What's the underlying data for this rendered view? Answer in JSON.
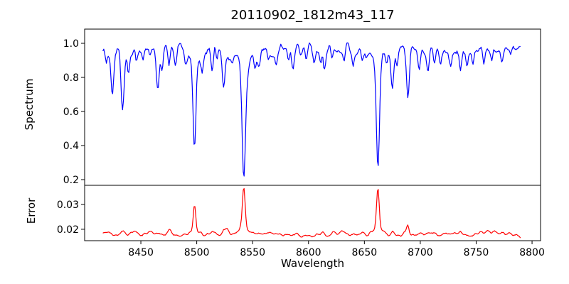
{
  "chart_data": {
    "type": "line",
    "title": "20110902_1812m43_117",
    "xlabel": "Wavelength",
    "xlim": [
      8399.7,
      8807.6
    ],
    "xticks": [
      8450,
      8500,
      8550,
      8600,
      8650,
      8700,
      8750,
      8800
    ],
    "xtick_labels": [
      "8450",
      "8500",
      "8550",
      "8600",
      "8650",
      "8700",
      "8750",
      "8800"
    ],
    "wavelength_range": [
      8416,
      8790
    ],
    "sample_step": 0.8,
    "grid": false,
    "legend": "none",
    "panels": [
      {
        "name": "spectrum",
        "ylabel": "Spectrum",
        "ylim": [
          0.1667,
          1.0833
        ],
        "yticks": [
          0.2,
          0.4,
          0.6,
          0.8,
          1.0
        ],
        "ytick_labels": [
          "0.2",
          "0.4",
          "0.6",
          "0.8",
          "1.0"
        ],
        "line_color": "#0000ff",
        "continuum_level": 0.967,
        "continuum_curvature": 0.012,
        "noise_sigma": 0.02,
        "fine_noise_sigma": 0.007,
        "absorption_lines": [
          [
            8419,
            0.08,
            0.9
          ],
          [
            8424.5,
            0.25,
            1.2
          ],
          [
            8433.5,
            0.33,
            1.4
          ],
          [
            8439,
            0.14,
            1.0
          ],
          [
            8446,
            0.1,
            0.9
          ],
          [
            8452,
            0.07,
            0.9
          ],
          [
            8458,
            0.06,
            0.9
          ],
          [
            8465,
            0.2,
            1.3
          ],
          [
            8469,
            0.11,
            0.9
          ],
          [
            8475,
            0.09,
            0.9
          ],
          [
            8481,
            0.06,
            0.9
          ],
          [
            8490,
            0.07,
            0.9
          ],
          [
            8498,
            0.52,
            1.3
          ],
          [
            8498,
            0.08,
            4.5
          ],
          [
            8505,
            0.08,
            0.9
          ],
          [
            8514,
            0.13,
            1.1
          ],
          [
            8518,
            0.09,
            0.9
          ],
          [
            8524,
            0.19,
            1.3
          ],
          [
            8532,
            0.07,
            0.9
          ],
          [
            8542.1,
            0.65,
            1.5
          ],
          [
            8542.1,
            0.1,
            5.5
          ],
          [
            8552,
            0.08,
            0.9
          ],
          [
            8556,
            0.07,
            0.9
          ],
          [
            8564,
            0.06,
            0.9
          ],
          [
            8571,
            0.05,
            0.9
          ],
          [
            8582,
            0.09,
            1.0
          ],
          [
            8586,
            0.12,
            1.1
          ],
          [
            8598,
            0.09,
            1.0
          ],
          [
            8605,
            0.06,
            0.9
          ],
          [
            8611,
            0.1,
            1.0
          ],
          [
            8614,
            0.11,
            1.0
          ],
          [
            8621,
            0.09,
            1.0
          ],
          [
            8632,
            0.07,
            0.9
          ],
          [
            8640,
            0.06,
            0.9
          ],
          [
            8648,
            0.11,
            1.1
          ],
          [
            8662.1,
            0.6,
            1.4
          ],
          [
            8662.1,
            0.09,
            5.0
          ],
          [
            8670,
            0.08,
            0.9
          ],
          [
            8675,
            0.24,
            1.3
          ],
          [
            8679,
            0.1,
            0.9
          ],
          [
            8689,
            0.29,
            1.3
          ],
          [
            8699,
            0.1,
            1.0
          ],
          [
            8707,
            0.12,
            1.1
          ],
          [
            8713,
            0.08,
            0.9
          ],
          [
            8718,
            0.07,
            0.9
          ],
          [
            8727,
            0.06,
            0.9
          ],
          [
            8736,
            0.1,
            1.0
          ],
          [
            8742,
            0.06,
            0.9
          ],
          [
            8747,
            0.07,
            0.9
          ],
          [
            8757,
            0.08,
            0.9
          ],
          [
            8764,
            0.07,
            0.9
          ],
          [
            8773,
            0.06,
            0.9
          ],
          [
            8781,
            0.05,
            0.9
          ],
          [
            8788,
            -0.05,
            1.8
          ]
        ],
        "deep_line_minima": {
          "8498": 0.36,
          "8542": 0.21,
          "8662": 0.27
        },
        "value_clamp": [
          0.18,
          1.07
        ]
      },
      {
        "name": "error",
        "ylabel": "Error",
        "ylim": [
          0.0154,
          0.0377
        ],
        "yticks": [
          0.02,
          0.03
        ],
        "ytick_labels": [
          "0.02",
          "0.03"
        ],
        "line_color": "#ff0000",
        "baseline": 0.0181,
        "noise_sigma": 0.0005,
        "fine_noise_sigma": 0.00015,
        "spikes": [
          [
            8424.5,
            0.0006,
            1.2
          ],
          [
            8433.5,
            0.001,
            1.3
          ],
          [
            8465,
            0.0008,
            1.2
          ],
          [
            8475,
            0.0006,
            1.0
          ],
          [
            8498,
            0.011,
            1.1
          ],
          [
            8498,
            0.0012,
            3.5
          ],
          [
            8514,
            0.0005,
            1.0
          ],
          [
            8524,
            0.0008,
            1.1
          ],
          [
            8527,
            0.0012,
            1.3
          ],
          [
            8542.1,
            0.0165,
            1.2
          ],
          [
            8542.1,
            0.0022,
            4.0
          ],
          [
            8586,
            0.0006,
            1.0
          ],
          [
            8614,
            0.0005,
            1.0
          ],
          [
            8648,
            0.0005,
            1.0
          ],
          [
            8662.1,
            0.0165,
            1.2
          ],
          [
            8662.1,
            0.0022,
            4.0
          ],
          [
            8675,
            0.001,
            1.2
          ],
          [
            8689,
            0.0038,
            1.1
          ],
          [
            8707,
            0.0008,
            1.0
          ],
          [
            8736,
            0.0006,
            1.0
          ],
          [
            8755,
            0.0008,
            3.0
          ],
          [
            8765,
            0.0008,
            2.0
          ],
          [
            8788,
            -0.0012,
            2.0
          ]
        ],
        "spike_peaks": {
          "8498": 0.03,
          "8542": 0.037,
          "8662": 0.037,
          "8689": 0.022
        },
        "value_clamp": [
          0.0162,
          0.0372
        ]
      }
    ],
    "axes_color": "#000000",
    "background_color": "#ffffff"
  }
}
